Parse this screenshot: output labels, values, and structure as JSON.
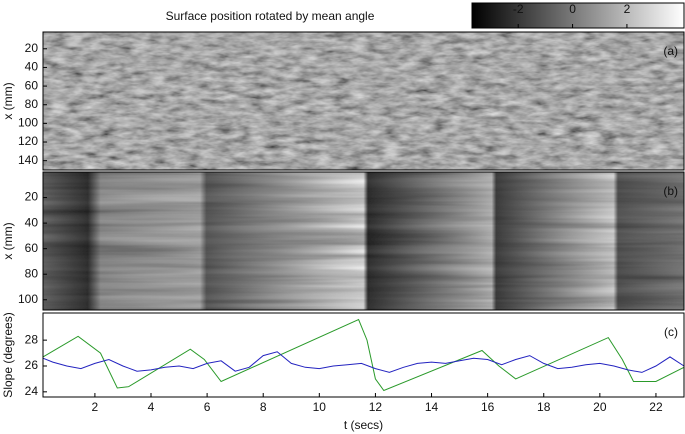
{
  "chart_data": [
    {
      "type": "heatmap",
      "title": "Surface position rotated by mean angle",
      "panel_label": "(a)",
      "y_label": "x (mm)",
      "ylim": [
        2,
        150
      ],
      "yticks": [
        20,
        40,
        60,
        80,
        100,
        120,
        140
      ],
      "colorbar": {
        "clim": [
          -3.7,
          4.1
        ],
        "ticks": [
          -2,
          0,
          2
        ]
      }
    },
    {
      "type": "heatmap",
      "panel_label": "(b)",
      "y_label": "x (mm)",
      "ylim": [
        0,
        108
      ],
      "yticks": [
        20,
        40,
        60,
        80,
        100
      ]
    },
    {
      "type": "line",
      "panel_label": "(c)",
      "y_label": "Slope (degrees)",
      "x_label": "t (secs)",
      "xlim": [
        0.15,
        23
      ],
      "xticks": [
        2,
        4,
        6,
        8,
        10,
        12,
        14,
        16,
        18,
        20,
        22
      ],
      "ylim": [
        23.6,
        30.1
      ],
      "yticks": [
        24,
        26,
        28
      ],
      "series": [
        {
          "color": "#2a9a2a",
          "x": [
            0.15,
            1.4,
            2.2,
            2.8,
            3.2,
            5.4,
            5.9,
            6.5,
            11.4,
            11.7,
            12.0,
            12.3,
            15.8,
            16.4,
            17.0,
            20.3,
            20.8,
            21.2,
            22.0,
            23.0
          ],
          "values": [
            26.7,
            28.3,
            27.0,
            24.3,
            24.4,
            27.3,
            26.5,
            24.8,
            29.6,
            28.0,
            25.0,
            24.1,
            27.2,
            26.0,
            25.0,
            28.2,
            26.5,
            24.8,
            24.8,
            25.9
          ]
        },
        {
          "color": "#2323c0",
          "x": [
            0.15,
            0.5,
            1,
            1.5,
            2,
            2.5,
            3,
            3.5,
            4,
            4.5,
            5,
            5.5,
            6,
            6.5,
            7,
            7.5,
            8,
            8.5,
            9,
            9.5,
            10,
            10.5,
            11,
            11.5,
            12,
            12.5,
            13,
            13.5,
            14,
            14.5,
            15,
            15.5,
            16,
            16.5,
            17,
            17.5,
            18,
            18.5,
            19,
            19.5,
            20,
            20.5,
            21,
            21.5,
            22,
            22.5,
            23
          ],
          "values": [
            26.6,
            26.3,
            26.0,
            25.8,
            26.2,
            26.5,
            26.0,
            25.6,
            25.7,
            25.9,
            26.0,
            25.8,
            26.2,
            26.4,
            25.6,
            25.9,
            26.8,
            27.1,
            26.2,
            25.9,
            25.8,
            26.0,
            26.1,
            26.2,
            25.8,
            25.5,
            25.9,
            26.2,
            26.3,
            26.2,
            26.4,
            26.6,
            26.5,
            26.1,
            26.5,
            26.8,
            26.2,
            25.8,
            25.9,
            26.1,
            26.2,
            26.0,
            25.7,
            25.5,
            26.0,
            26.7,
            26.0
          ]
        }
      ]
    }
  ]
}
